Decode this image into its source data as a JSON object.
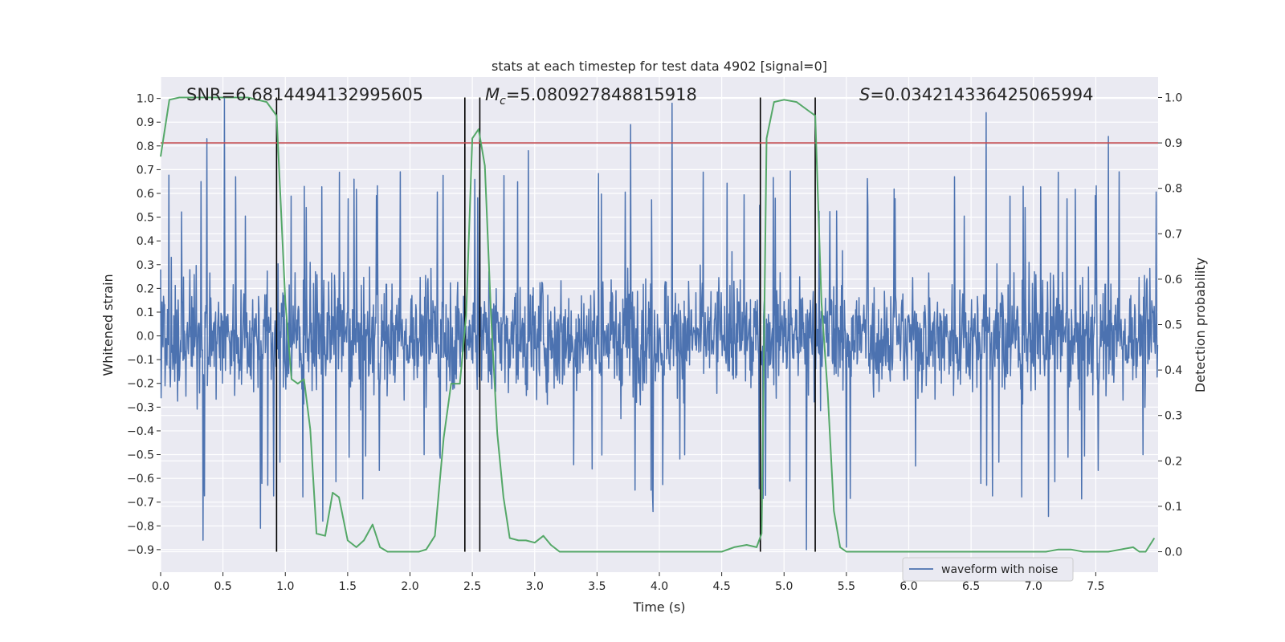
{
  "chart_data": {
    "type": "line",
    "title": "stats at each timestep for test data 4902 [signal=0]",
    "xlabel": "Time (s)",
    "ylabel": "Whitened strain",
    "ylabel_right": "Detection probability",
    "xlim": [
      0.0,
      8.0
    ],
    "ylim": [
      -0.995,
      1.09
    ],
    "ylim_right": [
      -0.045,
      1.045
    ],
    "x_ticks": [
      "0.0",
      "0.5",
      "1.0",
      "1.5",
      "2.0",
      "2.5",
      "3.0",
      "3.5",
      "4.0",
      "4.5",
      "5.0",
      "5.5",
      "6.0",
      "6.5",
      "7.0",
      "7.5"
    ],
    "y_ticks": [
      "1.0",
      "0.9",
      "0.8",
      "0.7",
      "0.6",
      "0.5",
      "0.4",
      "0.3",
      "0.2",
      "0.1",
      "0.0",
      "−0.1",
      "−0.2",
      "−0.3",
      "−0.4",
      "−0.5",
      "−0.6",
      "−0.7",
      "−0.8",
      "−0.9"
    ],
    "y_ticks_right": [
      "1.0",
      "0.9",
      "0.8",
      "0.7",
      "0.6",
      "0.5",
      "0.4",
      "0.3",
      "0.2",
      "0.1",
      "0.0"
    ],
    "grid": true,
    "legend_position": "lower-right",
    "annotations": {
      "snr_label": "SNR=6.6814494132995605",
      "mc_label": "=5.080927848815918",
      "mc_symbol": "M",
      "mc_sub": "c",
      "s_label": "=0.034214336425065994",
      "s_symbol": "S"
    },
    "threshold_right": 0.9,
    "vertical_lines_x": [
      0.93,
      2.44,
      2.56,
      4.81,
      5.25
    ],
    "series": [
      {
        "name": "waveform with noise",
        "axis": "left",
        "color": "#4c72b0",
        "kind": "noise",
        "n_points": 2048,
        "typical_range": [
          -0.55,
          0.55
        ],
        "spike_peaks": [
          {
            "x": 0.37,
            "y": 0.83
          },
          {
            "x": 0.51,
            "y": 1.0
          },
          {
            "x": 0.34,
            "y": -0.86
          },
          {
            "x": 1.55,
            "y": 0.66
          },
          {
            "x": 2.95,
            "y": 0.78
          },
          {
            "x": 3.77,
            "y": 0.89
          },
          {
            "x": 4.1,
            "y": 0.98
          },
          {
            "x": 6.62,
            "y": 0.94
          },
          {
            "x": 7.6,
            "y": 0.84
          },
          {
            "x": 5.18,
            "y": -0.9
          },
          {
            "x": 5.5,
            "y": -0.89
          },
          {
            "x": 7.12,
            "y": -0.76
          },
          {
            "x": 1.3,
            "y": -0.78
          },
          {
            "x": 3.95,
            "y": -0.74
          },
          {
            "x": 0.8,
            "y": -0.81
          }
        ]
      },
      {
        "name": "",
        "axis": "right",
        "color": "#55a868",
        "x": [
          0.0,
          0.07,
          0.15,
          0.25,
          0.4,
          0.55,
          0.7,
          0.85,
          0.93,
          1.0,
          1.05,
          1.1,
          1.15,
          1.2,
          1.25,
          1.32,
          1.38,
          1.43,
          1.5,
          1.57,
          1.63,
          1.7,
          1.76,
          1.82,
          1.9,
          2.0,
          2.07,
          2.13,
          2.2,
          2.27,
          2.33,
          2.4,
          2.45,
          2.5,
          2.55,
          2.6,
          2.65,
          2.7,
          2.75,
          2.8,
          2.87,
          2.93,
          3.0,
          3.07,
          3.13,
          3.2,
          3.3,
          3.4,
          3.5,
          3.6,
          3.7,
          3.8,
          3.9,
          4.0,
          4.1,
          4.2,
          4.3,
          4.4,
          4.5,
          4.6,
          4.7,
          4.78,
          4.82,
          4.86,
          4.92,
          5.0,
          5.1,
          5.2,
          5.25,
          5.3,
          5.35,
          5.4,
          5.45,
          5.5,
          5.6,
          5.7,
          5.8,
          6.0,
          6.2,
          6.4,
          6.6,
          6.8,
          7.0,
          7.1,
          7.2,
          7.3,
          7.4,
          7.5,
          7.6,
          7.7,
          7.8,
          7.85,
          7.9,
          7.97
        ],
        "values": [
          0.87,
          0.995,
          1.0,
          1.0,
          1.0,
          1.0,
          1.0,
          0.99,
          0.96,
          0.55,
          0.38,
          0.37,
          0.38,
          0.27,
          0.04,
          0.035,
          0.13,
          0.12,
          0.025,
          0.01,
          0.025,
          0.06,
          0.01,
          0.0,
          0.0,
          0.0,
          0.0,
          0.005,
          0.035,
          0.25,
          0.37,
          0.37,
          0.52,
          0.91,
          0.93,
          0.85,
          0.52,
          0.26,
          0.12,
          0.03,
          0.025,
          0.025,
          0.02,
          0.035,
          0.015,
          0.0,
          0.0,
          0.0,
          0.0,
          0.0,
          0.0,
          0.0,
          0.0,
          0.0,
          0.0,
          0.0,
          0.0,
          0.0,
          0.0,
          0.01,
          0.015,
          0.01,
          0.04,
          0.91,
          0.99,
          0.995,
          0.99,
          0.97,
          0.96,
          0.55,
          0.35,
          0.09,
          0.01,
          0.0,
          0.0,
          0.0,
          0.0,
          0.0,
          0.0,
          0.0,
          0.0,
          0.0,
          0.0,
          0.0,
          0.005,
          0.005,
          0.0,
          0.0,
          0.0,
          0.005,
          0.01,
          0.0,
          0.0,
          0.03
        ]
      }
    ]
  }
}
